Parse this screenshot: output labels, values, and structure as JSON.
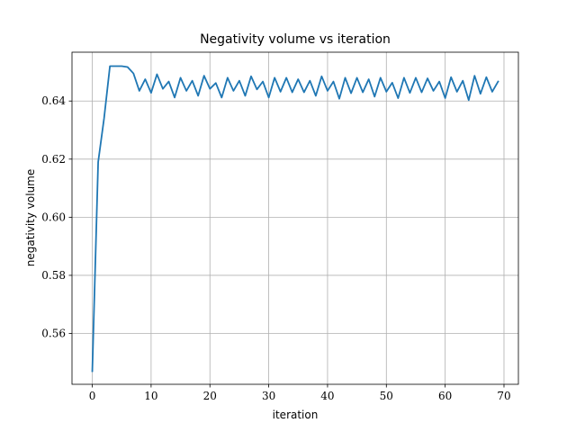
{
  "chart_data": {
    "type": "line",
    "title": "Negativity volume vs iteration",
    "xlabel": "iteration",
    "ylabel": "negativity volume",
    "xlim": [
      -3.45,
      72.45
    ],
    "ylim": [
      0.5425,
      0.6568
    ],
    "xticks": [
      0,
      10,
      20,
      30,
      40,
      50,
      60,
      70
    ],
    "yticks": [
      0.56,
      0.58,
      0.6,
      0.62,
      0.64
    ],
    "xtick_labels": [
      "0",
      "10",
      "20",
      "30",
      "40",
      "50",
      "60",
      "70"
    ],
    "ytick_labels": [
      "0.56",
      "0.58",
      "0.60",
      "0.62",
      "0.64"
    ],
    "grid": true,
    "series": [
      {
        "color": "#1f77b4",
        "x": [
          0,
          1,
          2,
          3,
          4,
          5,
          6,
          7,
          8,
          9,
          10,
          11,
          12,
          13,
          14,
          15,
          16,
          17,
          18,
          19,
          20,
          21,
          22,
          23,
          24,
          25,
          26,
          27,
          28,
          29,
          30,
          31,
          32,
          33,
          34,
          35,
          36,
          37,
          38,
          39,
          40,
          41,
          42,
          43,
          44,
          45,
          46,
          47,
          48,
          49,
          50,
          51,
          52,
          53,
          54,
          55,
          56,
          57,
          58,
          59,
          60,
          61,
          62,
          63,
          64,
          65,
          66,
          67,
          68,
          69
        ],
        "values": [
          0.547,
          0.619,
          0.634,
          0.652,
          0.652,
          0.652,
          0.6517,
          0.6495,
          0.6435,
          0.6475,
          0.6428,
          0.6492,
          0.6442,
          0.6467,
          0.6412,
          0.648,
          0.6435,
          0.647,
          0.6418,
          0.6487,
          0.6442,
          0.6462,
          0.6412,
          0.648,
          0.6435,
          0.647,
          0.6418,
          0.6485,
          0.644,
          0.6467,
          0.6412,
          0.648,
          0.6432,
          0.648,
          0.643,
          0.6475,
          0.643,
          0.647,
          0.6418,
          0.6485,
          0.6435,
          0.6467,
          0.6408,
          0.648,
          0.6427,
          0.648,
          0.643,
          0.6475,
          0.6415,
          0.648,
          0.6432,
          0.6463,
          0.641,
          0.648,
          0.6428,
          0.648,
          0.643,
          0.6478,
          0.6435,
          0.6467,
          0.641,
          0.6482,
          0.6432,
          0.647,
          0.6403,
          0.6487,
          0.6425,
          0.6482,
          0.6432,
          0.6467
        ]
      }
    ]
  }
}
